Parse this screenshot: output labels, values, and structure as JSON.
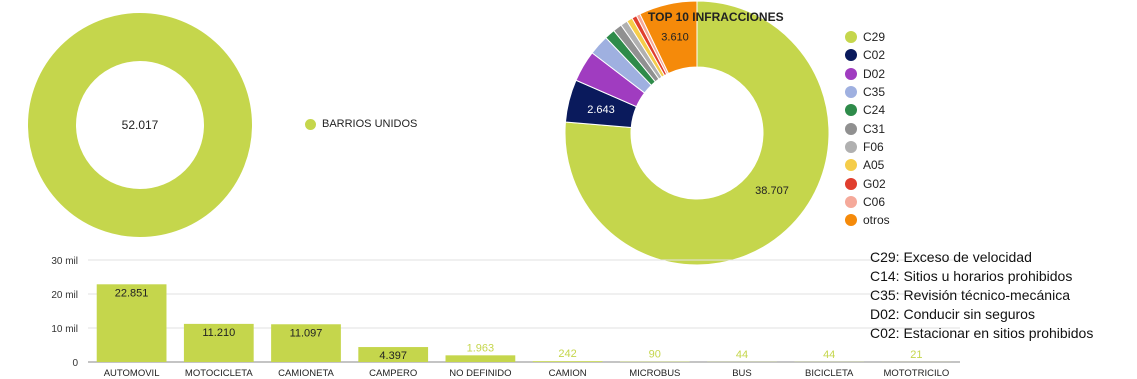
{
  "chart_data": [
    {
      "type": "pie",
      "donut": true,
      "categories": [
        "BARRIOS UNIDOS"
      ],
      "values": [
        52017
      ],
      "labels": [
        "52.017"
      ],
      "colors": [
        "#c5d64c"
      ],
      "legend": "right"
    },
    {
      "type": "pie",
      "donut": true,
      "title": "TOP 10 INFRACCIONES",
      "categories": [
        "C29",
        "C02",
        "D02",
        "C35",
        "C24",
        "C31",
        "F06",
        "A05",
        "G02",
        "C06",
        "otros"
      ],
      "values": [
        38707,
        2643,
        1950,
        1250,
        650,
        560,
        430,
        370,
        300,
        240,
        3610
      ],
      "slice_labels": {
        "C29": "38.707",
        "C02": "2.643",
        "otros": "3.610"
      },
      "colors": [
        "#c5d64c",
        "#0a1a5c",
        "#a03cc0",
        "#9fb0e0",
        "#2e8b4a",
        "#909090",
        "#b0b0b0",
        "#f5cd4a",
        "#e03e2e",
        "#f5a99a",
        "#f58a0a"
      ],
      "legend": "right"
    },
    {
      "type": "bar",
      "categories": [
        "AUTOMOVIL",
        "MOTOCICLETA",
        "CAMIONETA",
        "CAMPERO",
        "NO DEFINIDO",
        "CAMION",
        "MICROBUS",
        "BUS",
        "BICICLETA",
        "MOTOTRICILO"
      ],
      "values": [
        22851,
        11210,
        11097,
        4397,
        1963,
        242,
        90,
        44,
        44,
        21
      ],
      "value_labels": [
        "22.851",
        "11.210",
        "11.097",
        "4.397",
        "1.963",
        "242",
        "90",
        "44",
        "44",
        "21"
      ],
      "yticks": [
        "0",
        "10 mil",
        "20 mil",
        "30 mil"
      ],
      "ylim": [
        0,
        30000
      ],
      "grid": true,
      "color": "#c5d64c"
    }
  ],
  "notes": [
    "C29: Exceso de velocidad",
    "C14: Sitios u horarios prohibidos",
    "C35: Revisión técnico-mecánica",
    "D02: Conducir sin seguros",
    "C02: Estacionar en sitios prohibidos"
  ]
}
